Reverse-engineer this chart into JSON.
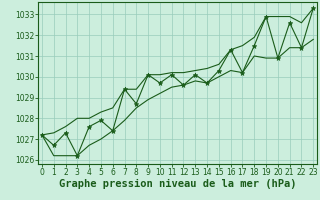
{
  "xlabel": "Graphe pression niveau de la mer (hPa)",
  "background_color": "#cceedd",
  "grid_color": "#99ccbb",
  "line_color": "#1a5c1a",
  "x_values": [
    0,
    1,
    2,
    3,
    4,
    5,
    6,
    7,
    8,
    9,
    10,
    11,
    12,
    13,
    14,
    15,
    16,
    17,
    18,
    19,
    20,
    21,
    22,
    23
  ],
  "pressure": [
    1027.2,
    1026.7,
    1027.3,
    1026.2,
    1027.6,
    1027.9,
    1027.4,
    1029.4,
    1028.7,
    1030.1,
    1029.7,
    1030.1,
    1029.6,
    1030.1,
    1029.7,
    1030.3,
    1031.3,
    1030.2,
    1031.5,
    1032.9,
    1030.9,
    1032.6,
    1031.4,
    1033.3
  ],
  "pressure_max": [
    1027.2,
    1027.3,
    1027.6,
    1028.0,
    1028.0,
    1028.3,
    1028.5,
    1029.4,
    1029.4,
    1030.1,
    1030.1,
    1030.2,
    1030.2,
    1030.3,
    1030.4,
    1030.6,
    1031.3,
    1031.5,
    1031.9,
    1032.9,
    1032.9,
    1032.9,
    1032.6,
    1033.3
  ],
  "pressure_min": [
    1027.2,
    1026.2,
    1026.2,
    1026.2,
    1026.7,
    1027.0,
    1027.4,
    1027.9,
    1028.5,
    1028.9,
    1029.2,
    1029.5,
    1029.6,
    1029.8,
    1029.7,
    1030.0,
    1030.3,
    1030.2,
    1031.0,
    1030.9,
    1030.9,
    1031.4,
    1031.4,
    1031.8
  ],
  "ylim": [
    1025.8,
    1033.6
  ],
  "yticks": [
    1026,
    1027,
    1028,
    1029,
    1030,
    1031,
    1032,
    1033
  ],
  "xticks": [
    0,
    1,
    2,
    3,
    4,
    5,
    6,
    7,
    8,
    9,
    10,
    11,
    12,
    13,
    14,
    15,
    16,
    17,
    18,
    19,
    20,
    21,
    22,
    23
  ],
  "marker": "*",
  "marker_size": 3.5,
  "linewidth": 0.8,
  "xlabel_fontsize": 7.5,
  "tick_fontsize": 5.5
}
